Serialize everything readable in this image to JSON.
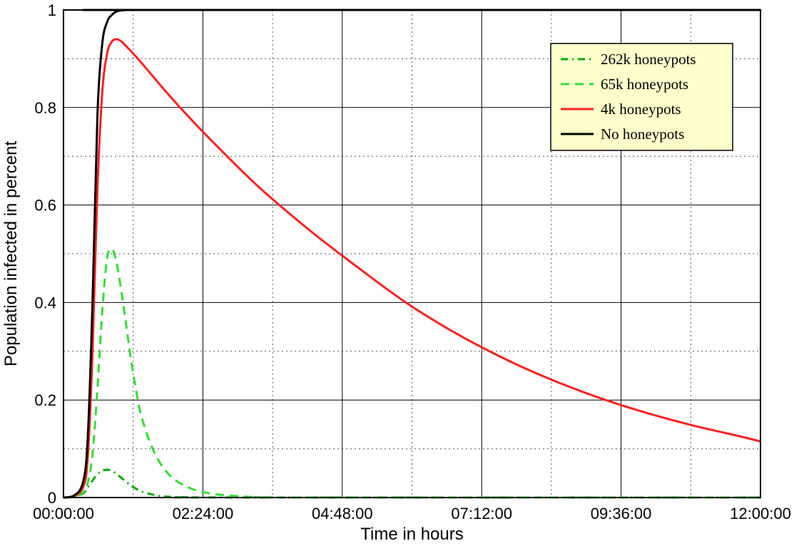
{
  "chart_data": {
    "type": "line",
    "title": "",
    "xlabel": "Time in hours",
    "ylabel": "Population infected in percent",
    "xlim": [
      0,
      720
    ],
    "ylim": [
      0,
      1
    ],
    "x_unit": "minutes",
    "x_ticks": [
      {
        "value": 0,
        "label": "00:00:00"
      },
      {
        "value": 144,
        "label": "02:24:00"
      },
      {
        "value": 288,
        "label": "04:48:00"
      },
      {
        "value": 432,
        "label": "07:12:00"
      },
      {
        "value": 576,
        "label": "09:36:00"
      },
      {
        "value": 720,
        "label": "12:00:00"
      }
    ],
    "y_ticks": [
      {
        "value": 0,
        "label": "0"
      },
      {
        "value": 0.2,
        "label": "0.2"
      },
      {
        "value": 0.4,
        "label": "0.4"
      },
      {
        "value": 0.6,
        "label": "0.6"
      },
      {
        "value": 0.8,
        "label": "0.8"
      },
      {
        "value": 1,
        "label": "1"
      }
    ],
    "grid": true,
    "legend_position": "top-right",
    "legend_background": "#ffffcc",
    "series": [
      {
        "name": "262k honeypots",
        "color": "#00aa00",
        "dash": "dashdot",
        "x": [
          0,
          10,
          20,
          25,
          30,
          35,
          40,
          45,
          50,
          55,
          60,
          65,
          70,
          80,
          90,
          100,
          110,
          130,
          160,
          720
        ],
        "y": [
          0,
          0.001,
          0.008,
          0.02,
          0.035,
          0.048,
          0.055,
          0.057,
          0.055,
          0.048,
          0.04,
          0.032,
          0.024,
          0.013,
          0.007,
          0.003,
          0.0015,
          0.0005,
          0.0001,
          0
        ]
      },
      {
        "name": "65k honeypots",
        "color": "#33dd33",
        "dash": "dashed",
        "x": [
          0,
          10,
          20,
          25,
          30,
          35,
          40,
          45,
          50,
          55,
          60,
          65,
          70,
          75,
          80,
          90,
          100,
          110,
          120,
          130,
          140,
          150,
          160,
          180,
          200,
          250,
          720
        ],
        "y": [
          0,
          0.001,
          0.01,
          0.03,
          0.09,
          0.22,
          0.38,
          0.49,
          0.51,
          0.48,
          0.42,
          0.35,
          0.28,
          0.22,
          0.17,
          0.11,
          0.07,
          0.045,
          0.03,
          0.02,
          0.013,
          0.009,
          0.006,
          0.003,
          0.001,
          0.0002,
          0
        ]
      },
      {
        "name": "4k honeypots",
        "color": "#ff2020",
        "dash": "solid",
        "x": [
          0,
          10,
          20,
          25,
          30,
          35,
          40,
          45,
          50,
          55,
          60,
          65,
          70,
          80,
          100,
          120,
          150,
          200,
          250,
          288,
          350,
          400,
          450,
          500,
          550,
          600,
          650,
          700,
          720
        ],
        "y": [
          0,
          0.002,
          0.02,
          0.08,
          0.3,
          0.63,
          0.83,
          0.91,
          0.935,
          0.94,
          0.935,
          0.925,
          0.915,
          0.893,
          0.846,
          0.801,
          0.738,
          0.64,
          0.555,
          0.496,
          0.405,
          0.343,
          0.29,
          0.245,
          0.207,
          0.175,
          0.148,
          0.125,
          0.115
        ]
      },
      {
        "name": "No honeypots",
        "color": "#000000",
        "dash": "solid",
        "x": [
          0,
          10,
          20,
          25,
          30,
          35,
          40,
          45,
          50,
          55,
          60,
          65,
          70,
          720
        ],
        "y": [
          0,
          0.003,
          0.03,
          0.12,
          0.4,
          0.78,
          0.93,
          0.975,
          0.99,
          0.997,
          0.999,
          1,
          1,
          1
        ]
      }
    ]
  }
}
